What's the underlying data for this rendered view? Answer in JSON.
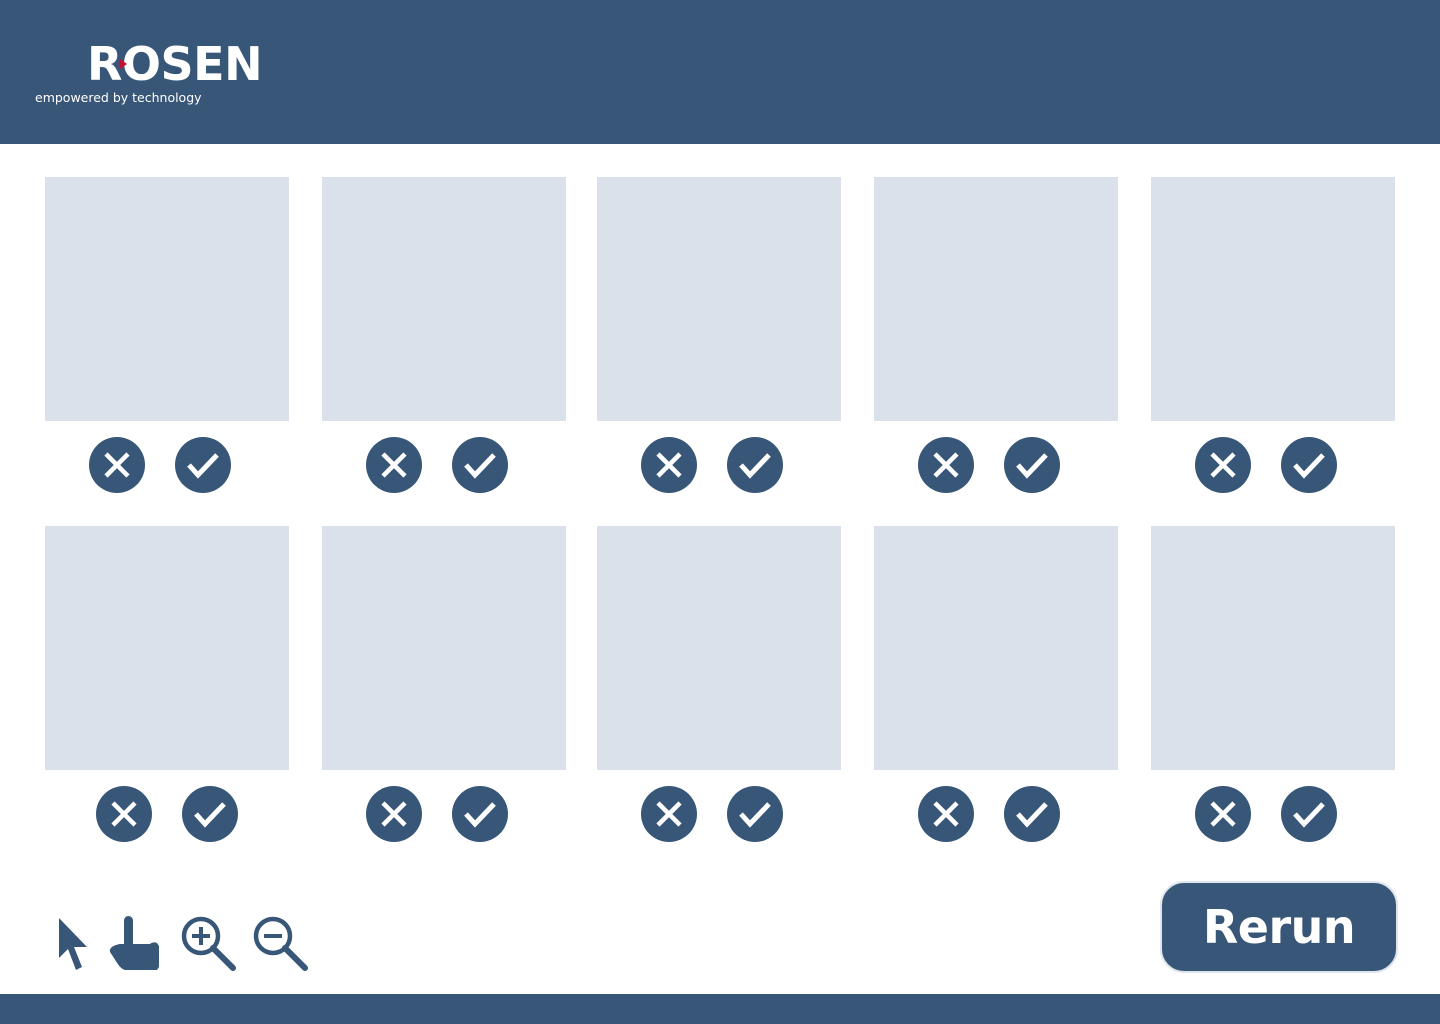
{
  "header": {
    "logo_wordmark": "ROSEN",
    "logo_tagline": "empowered by technology"
  },
  "grid": {
    "rows": [
      {
        "cells": [
          {
            "reject_icon": "x-circle-icon",
            "accept_icon": "check-circle-icon"
          },
          {
            "reject_icon": "x-circle-icon",
            "accept_icon": "check-circle-icon"
          },
          {
            "reject_icon": "x-circle-icon",
            "accept_icon": "check-circle-icon"
          },
          {
            "reject_icon": "x-circle-icon",
            "accept_icon": "check-circle-icon"
          },
          {
            "reject_icon": "x-circle-icon",
            "accept_icon": "check-circle-icon"
          }
        ]
      },
      {
        "cells": [
          {
            "reject_icon": "x-circle-icon",
            "accept_icon": "check-circle-icon"
          },
          {
            "reject_icon": "x-circle-icon",
            "accept_icon": "check-circle-icon"
          },
          {
            "reject_icon": "x-circle-icon",
            "accept_icon": "check-circle-icon"
          },
          {
            "reject_icon": "x-circle-icon",
            "accept_icon": "check-circle-icon"
          },
          {
            "reject_icon": "x-circle-icon",
            "accept_icon": "check-circle-icon"
          }
        ]
      }
    ]
  },
  "toolbar": {
    "tools": [
      "pointer-arrow-icon",
      "hand-pointer-icon",
      "zoom-in-icon",
      "zoom-out-icon"
    ]
  },
  "rerun": {
    "label": "Rerun"
  },
  "colors": {
    "brand": "#385678",
    "placeholder": "#dae1ea",
    "logo_accent": "#c8102e",
    "background": "#ffffff"
  }
}
